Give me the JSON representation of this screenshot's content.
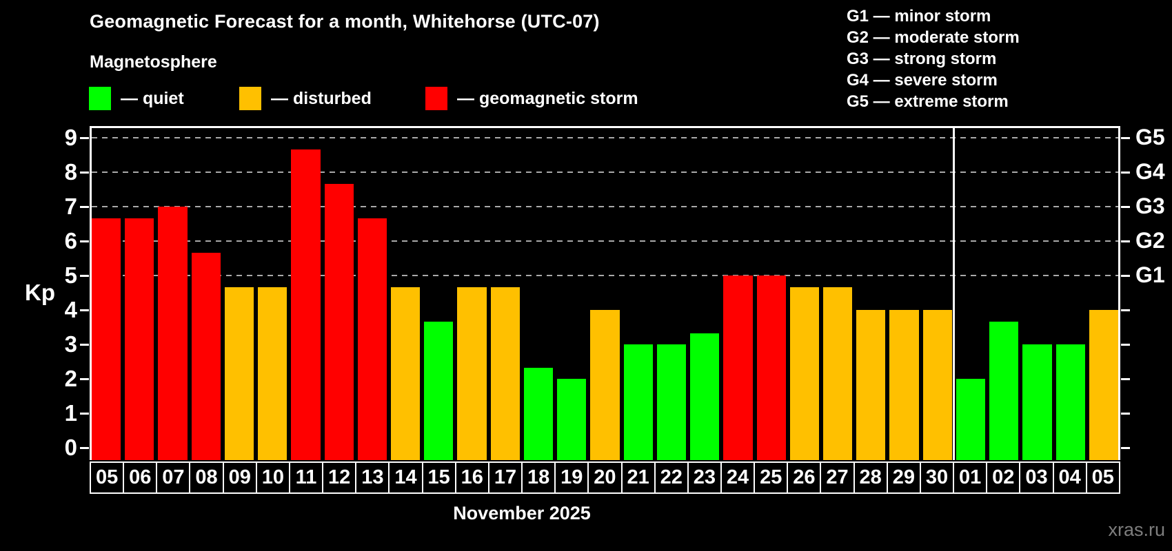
{
  "header": {
    "title": "Geomagnetic Forecast for a month, Whitehorse (UTC-07)",
    "subtitle": "Magnetosphere"
  },
  "legend": {
    "quiet": {
      "label": "— quiet",
      "color": "#00ff00"
    },
    "disturbed": {
      "label": "— disturbed",
      "color": "#ffc000"
    },
    "storm": {
      "label": "— geomagnetic storm",
      "color": "#ff0000"
    }
  },
  "g_legend": [
    "G1 — minor storm",
    "G2 — moderate storm",
    "G3 — strong storm",
    "G4 — severe storm",
    "G5 — extreme storm"
  ],
  "axis": {
    "y_label": "Kp",
    "y_ticks": [
      0,
      1,
      2,
      3,
      4,
      5,
      6,
      7,
      8,
      9
    ],
    "month_label": "November 2025"
  },
  "status_colors": {
    "quiet": "#00ff00",
    "disturbed": "#ffc000",
    "storm": "#ff0000"
  },
  "grid_color": "#aaaaaa",
  "watermark": "xras.ru",
  "chart_data": {
    "type": "bar",
    "title": "Geomagnetic Forecast for a month, Whitehorse (UTC-07)",
    "xlabel": "November 2025",
    "ylabel": "Kp",
    "ylim": [
      0,
      9
    ],
    "legend_position": "top-left",
    "grid": "dashed horizontal lines at Kp 5 through 9 only",
    "gridlines": [
      5,
      6,
      7,
      8,
      9
    ],
    "right_axis_labels": [
      {
        "label": "G1",
        "kp": 5
      },
      {
        "label": "G2",
        "kp": 6
      },
      {
        "label": "G3",
        "kp": 7
      },
      {
        "label": "G4",
        "kp": 8
      },
      {
        "label": "G5",
        "kp": 9
      }
    ],
    "month_split_index": 26,
    "bars": [
      {
        "day": "05",
        "kp": 6.67,
        "status": "storm"
      },
      {
        "day": "06",
        "kp": 6.67,
        "status": "storm"
      },
      {
        "day": "07",
        "kp": 7.0,
        "status": "storm"
      },
      {
        "day": "08",
        "kp": 5.67,
        "status": "storm"
      },
      {
        "day": "09",
        "kp": 4.67,
        "status": "disturbed"
      },
      {
        "day": "10",
        "kp": 4.67,
        "status": "disturbed"
      },
      {
        "day": "11",
        "kp": 8.67,
        "status": "storm"
      },
      {
        "day": "12",
        "kp": 7.67,
        "status": "storm"
      },
      {
        "day": "13",
        "kp": 6.67,
        "status": "storm"
      },
      {
        "day": "14",
        "kp": 4.67,
        "status": "disturbed"
      },
      {
        "day": "15",
        "kp": 3.67,
        "status": "quiet"
      },
      {
        "day": "16",
        "kp": 4.67,
        "status": "disturbed"
      },
      {
        "day": "17",
        "kp": 4.67,
        "status": "disturbed"
      },
      {
        "day": "18",
        "kp": 2.33,
        "status": "quiet"
      },
      {
        "day": "19",
        "kp": 2.0,
        "status": "quiet"
      },
      {
        "day": "20",
        "kp": 4.0,
        "status": "disturbed"
      },
      {
        "day": "21",
        "kp": 3.0,
        "status": "quiet"
      },
      {
        "day": "22",
        "kp": 3.0,
        "status": "quiet"
      },
      {
        "day": "23",
        "kp": 3.33,
        "status": "quiet"
      },
      {
        "day": "24",
        "kp": 5.0,
        "status": "storm"
      },
      {
        "day": "25",
        "kp": 5.0,
        "status": "storm"
      },
      {
        "day": "26",
        "kp": 4.67,
        "status": "disturbed"
      },
      {
        "day": "27",
        "kp": 4.67,
        "status": "disturbed"
      },
      {
        "day": "28",
        "kp": 4.0,
        "status": "disturbed"
      },
      {
        "day": "29",
        "kp": 4.0,
        "status": "disturbed"
      },
      {
        "day": "30",
        "kp": 4.0,
        "status": "disturbed"
      },
      {
        "day": "01",
        "kp": 2.0,
        "status": "quiet"
      },
      {
        "day": "02",
        "kp": 3.67,
        "status": "quiet"
      },
      {
        "day": "03",
        "kp": 3.0,
        "status": "quiet"
      },
      {
        "day": "04",
        "kp": 3.0,
        "status": "quiet"
      },
      {
        "day": "05",
        "kp": 4.0,
        "status": "disturbed"
      }
    ]
  }
}
